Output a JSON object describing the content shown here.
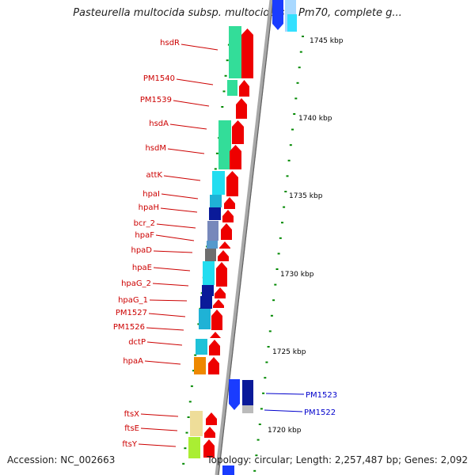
{
  "title": "Pasteurella multocida subsp. multocida str. Pm70, complete g...",
  "accession": "Accession: NC_002663",
  "summary": "Topology: circular; Length: 2,257,487 bp; Genes: 2,092",
  "scale_ticks": [
    "1745 kbp",
    "1740 kbp",
    "1735 kbp",
    "1730 kbp",
    "1725 kbp",
    "1720 kbp"
  ],
  "genes_reverse": [
    "hsdR",
    "PM1540",
    "PM1539",
    "hsdA",
    "hsdM",
    "attK",
    "hpaI",
    "hpaH",
    "bcr_2",
    "hpaF",
    "hpaD",
    "hpaE",
    "hpaG_2",
    "hpaG_1",
    "PM1527",
    "PM1526",
    "dctP",
    "hpaA",
    "ftsX",
    "ftsE",
    "ftsY"
  ],
  "genes_forward": [
    "PM1523",
    "PM1522"
  ],
  "colors": {
    "reverse_label": "#cc0000",
    "forward_label": "#0000cc",
    "backbone": "#a8a8a8",
    "gene_arrow": "#ee0000",
    "tick_mark": "#008800"
  }
}
